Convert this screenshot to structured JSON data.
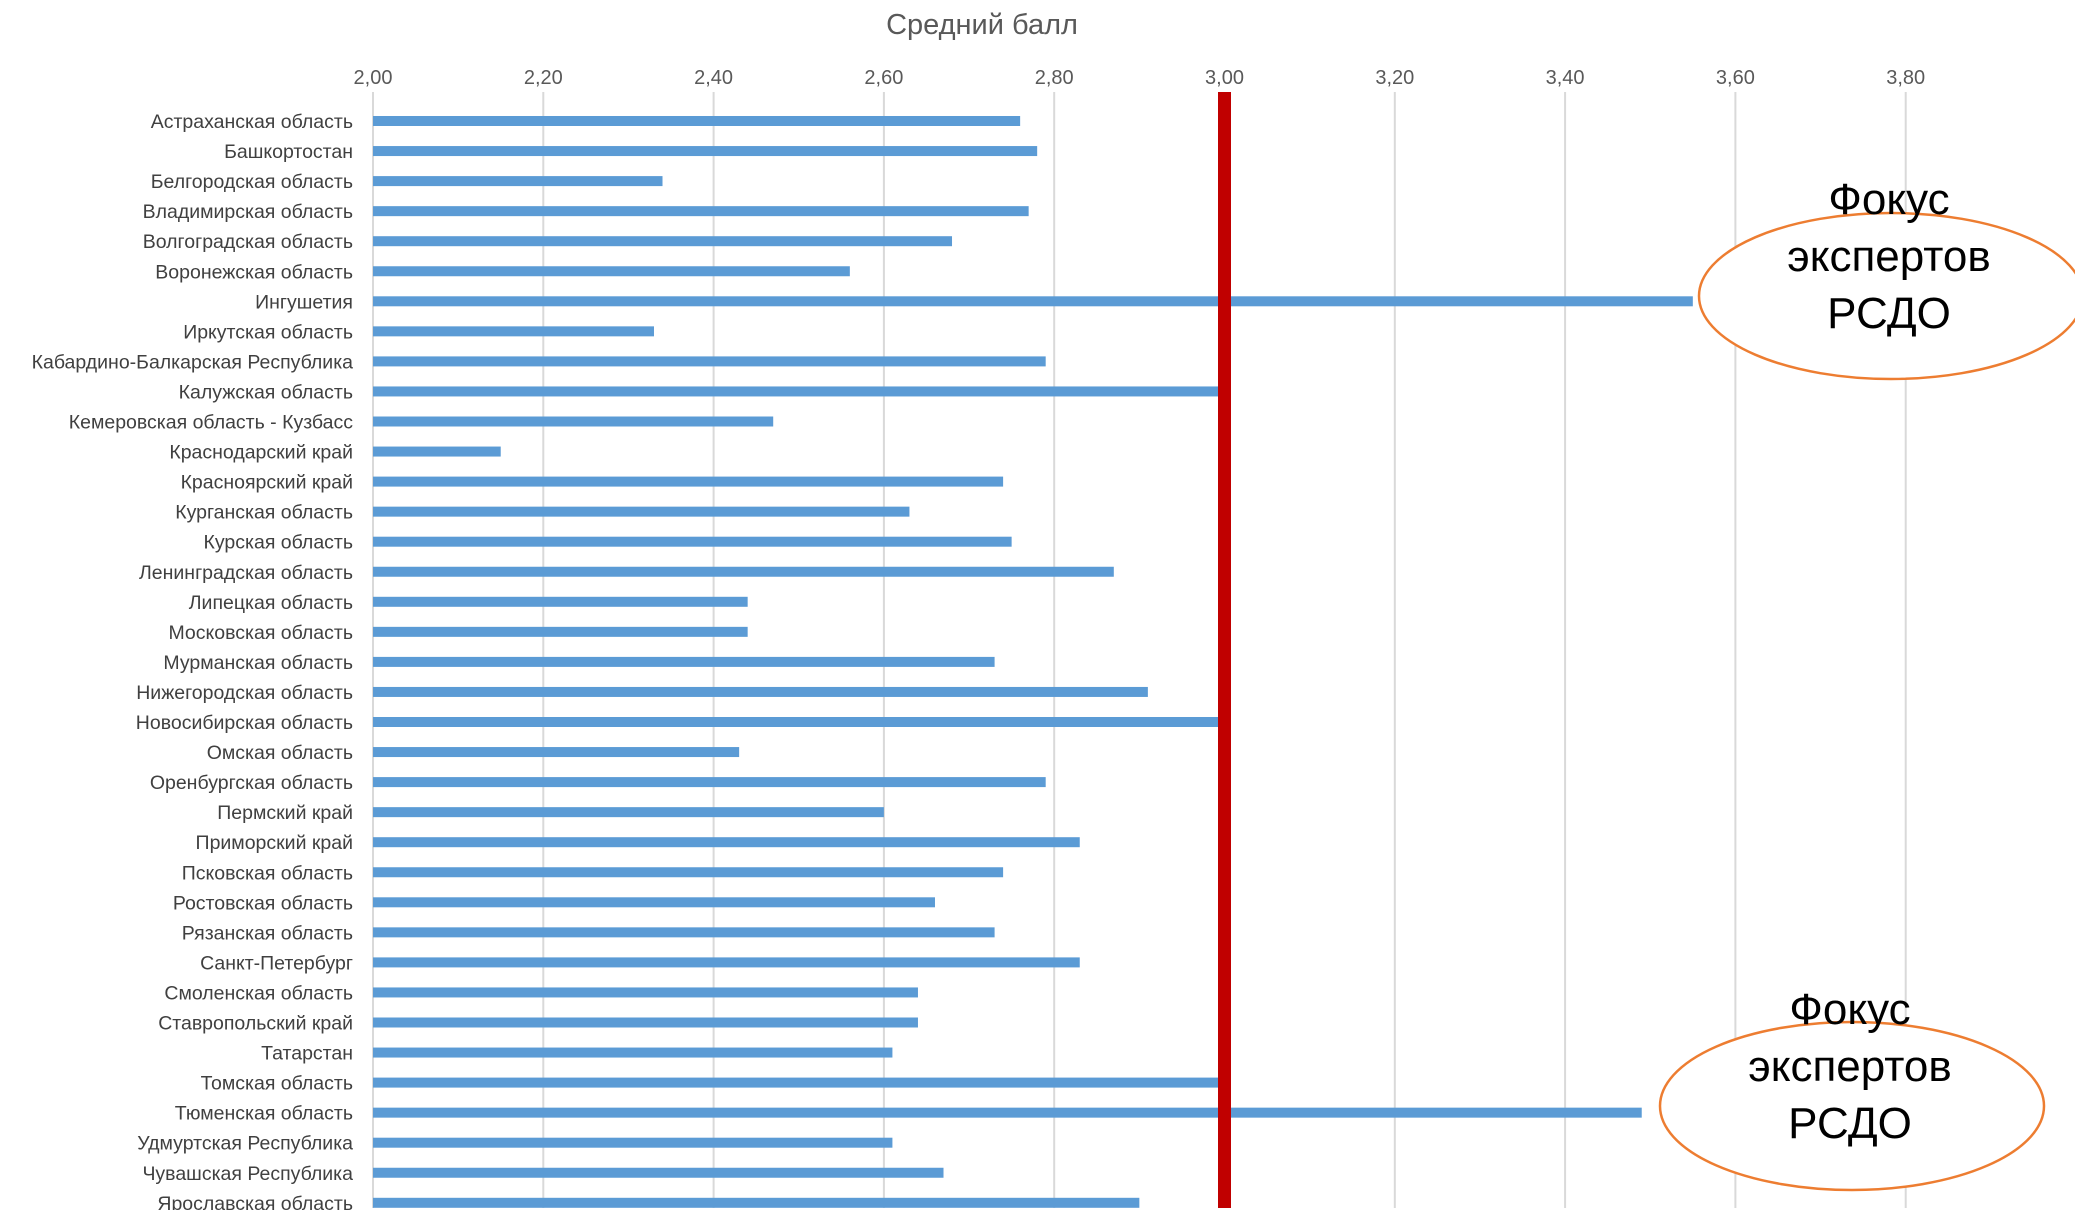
{
  "chart_data": {
    "type": "bar",
    "orientation": "horizontal",
    "title": "Средний балл",
    "xlim": [
      2.0,
      4.0
    ],
    "x_ticks": [
      2.0,
      2.2,
      2.4,
      2.6,
      2.8,
      3.0,
      3.2,
      3.4,
      3.6,
      3.8
    ],
    "x_tick_labels": [
      "2,00",
      "2,20",
      "2,40",
      "2,60",
      "2,80",
      "3,00",
      "3,20",
      "3,40",
      "3,60",
      "3,80"
    ],
    "grid": "vertical",
    "bar_color": "#5b9bd5",
    "reference_line": {
      "value": 3.0,
      "color": "#c00000"
    },
    "categories": [
      "Астраханская область",
      "Башкортостан",
      "Белгородская область",
      "Владимирская область",
      "Волгоградская область",
      "Воронежская область",
      "Ингушетия",
      "Иркутская область",
      "Кабардино-Балкарская Республика",
      "Калужская область",
      "Кемеровская область - Кузбасс",
      "Краснодарский край",
      "Красноярский край",
      "Курганская область",
      "Курская область",
      "Ленинградская область",
      "Липецкая область",
      "Московская область",
      "Мурманская область",
      "Нижегородская область",
      "Новосибирская область",
      "Омская область",
      "Оренбургская область",
      "Пермский край",
      "Приморский край",
      "Псковская область",
      "Ростовская область",
      "Рязанская область",
      "Санкт-Петербург",
      "Смоленская область",
      "Ставропольский край",
      "Татарстан",
      "Томская область",
      "Тюменская область",
      "Удмуртская Республика",
      "Чувашская Республика",
      "Ярославская область"
    ],
    "values": [
      2.76,
      2.78,
      2.34,
      2.77,
      2.68,
      2.56,
      3.55,
      2.33,
      2.79,
      3.0,
      2.47,
      2.15,
      2.74,
      2.63,
      2.75,
      2.87,
      2.44,
      2.44,
      2.73,
      2.91,
      3.0,
      2.43,
      2.79,
      2.6,
      2.83,
      2.74,
      2.66,
      2.73,
      2.83,
      2.64,
      2.64,
      2.61,
      3.0,
      3.49,
      2.61,
      2.67,
      2.9
    ],
    "annotations": [
      {
        "text_lines": [
          "Фокус",
          "экспертов",
          "РСДО"
        ],
        "target": "Ингушетия",
        "border_color": "#ed7d31"
      },
      {
        "text_lines": [
          "Фокус",
          "экспертов",
          "РСДО"
        ],
        "target": "Тюменская область",
        "border_color": "#ed7d31"
      }
    ]
  }
}
